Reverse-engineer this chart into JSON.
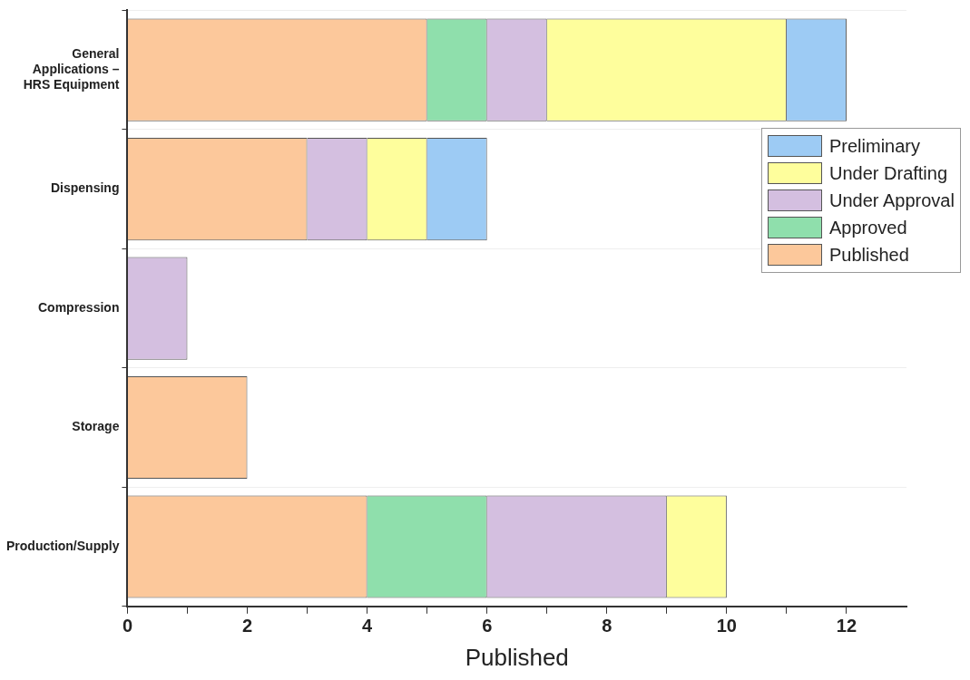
{
  "chart_data": {
    "type": "bar",
    "orientation": "horizontal",
    "stacked": true,
    "xlabel": "Published",
    "categories": [
      "General Applications – HRS Equipment",
      "Dispensing",
      "Compression",
      "Storage",
      "Production/Supply"
    ],
    "series": [
      {
        "name": "Published",
        "color": "#fcc89b",
        "values": [
          5,
          3,
          0,
          2,
          4
        ]
      },
      {
        "name": "Approved",
        "color": "#8fdfac",
        "values": [
          1,
          0,
          0,
          0,
          2
        ]
      },
      {
        "name": "Under Approval",
        "color": "#d4bfe0",
        "values": [
          1,
          1,
          1,
          0,
          3
        ]
      },
      {
        "name": "Under Drafting",
        "color": "#fefe9c",
        "values": [
          4,
          1,
          0,
          0,
          1
        ]
      },
      {
        "name": "Preliminary",
        "color": "#9dcbf4",
        "values": [
          1,
          1,
          0,
          0,
          0
        ]
      }
    ],
    "xlim": [
      0,
      13
    ],
    "xticks": [
      0,
      {
        "value": 1,
        "label": null
      },
      2,
      {
        "value": 3,
        "label": null
      },
      4,
      {
        "value": 5,
        "label": null
      },
      6,
      {
        "value": 7,
        "label": null
      },
      8,
      {
        "value": 9,
        "label": null
      },
      10,
      {
        "value": 11,
        "label": null
      },
      12
    ],
    "grid": "y",
    "legend": "top right"
  }
}
